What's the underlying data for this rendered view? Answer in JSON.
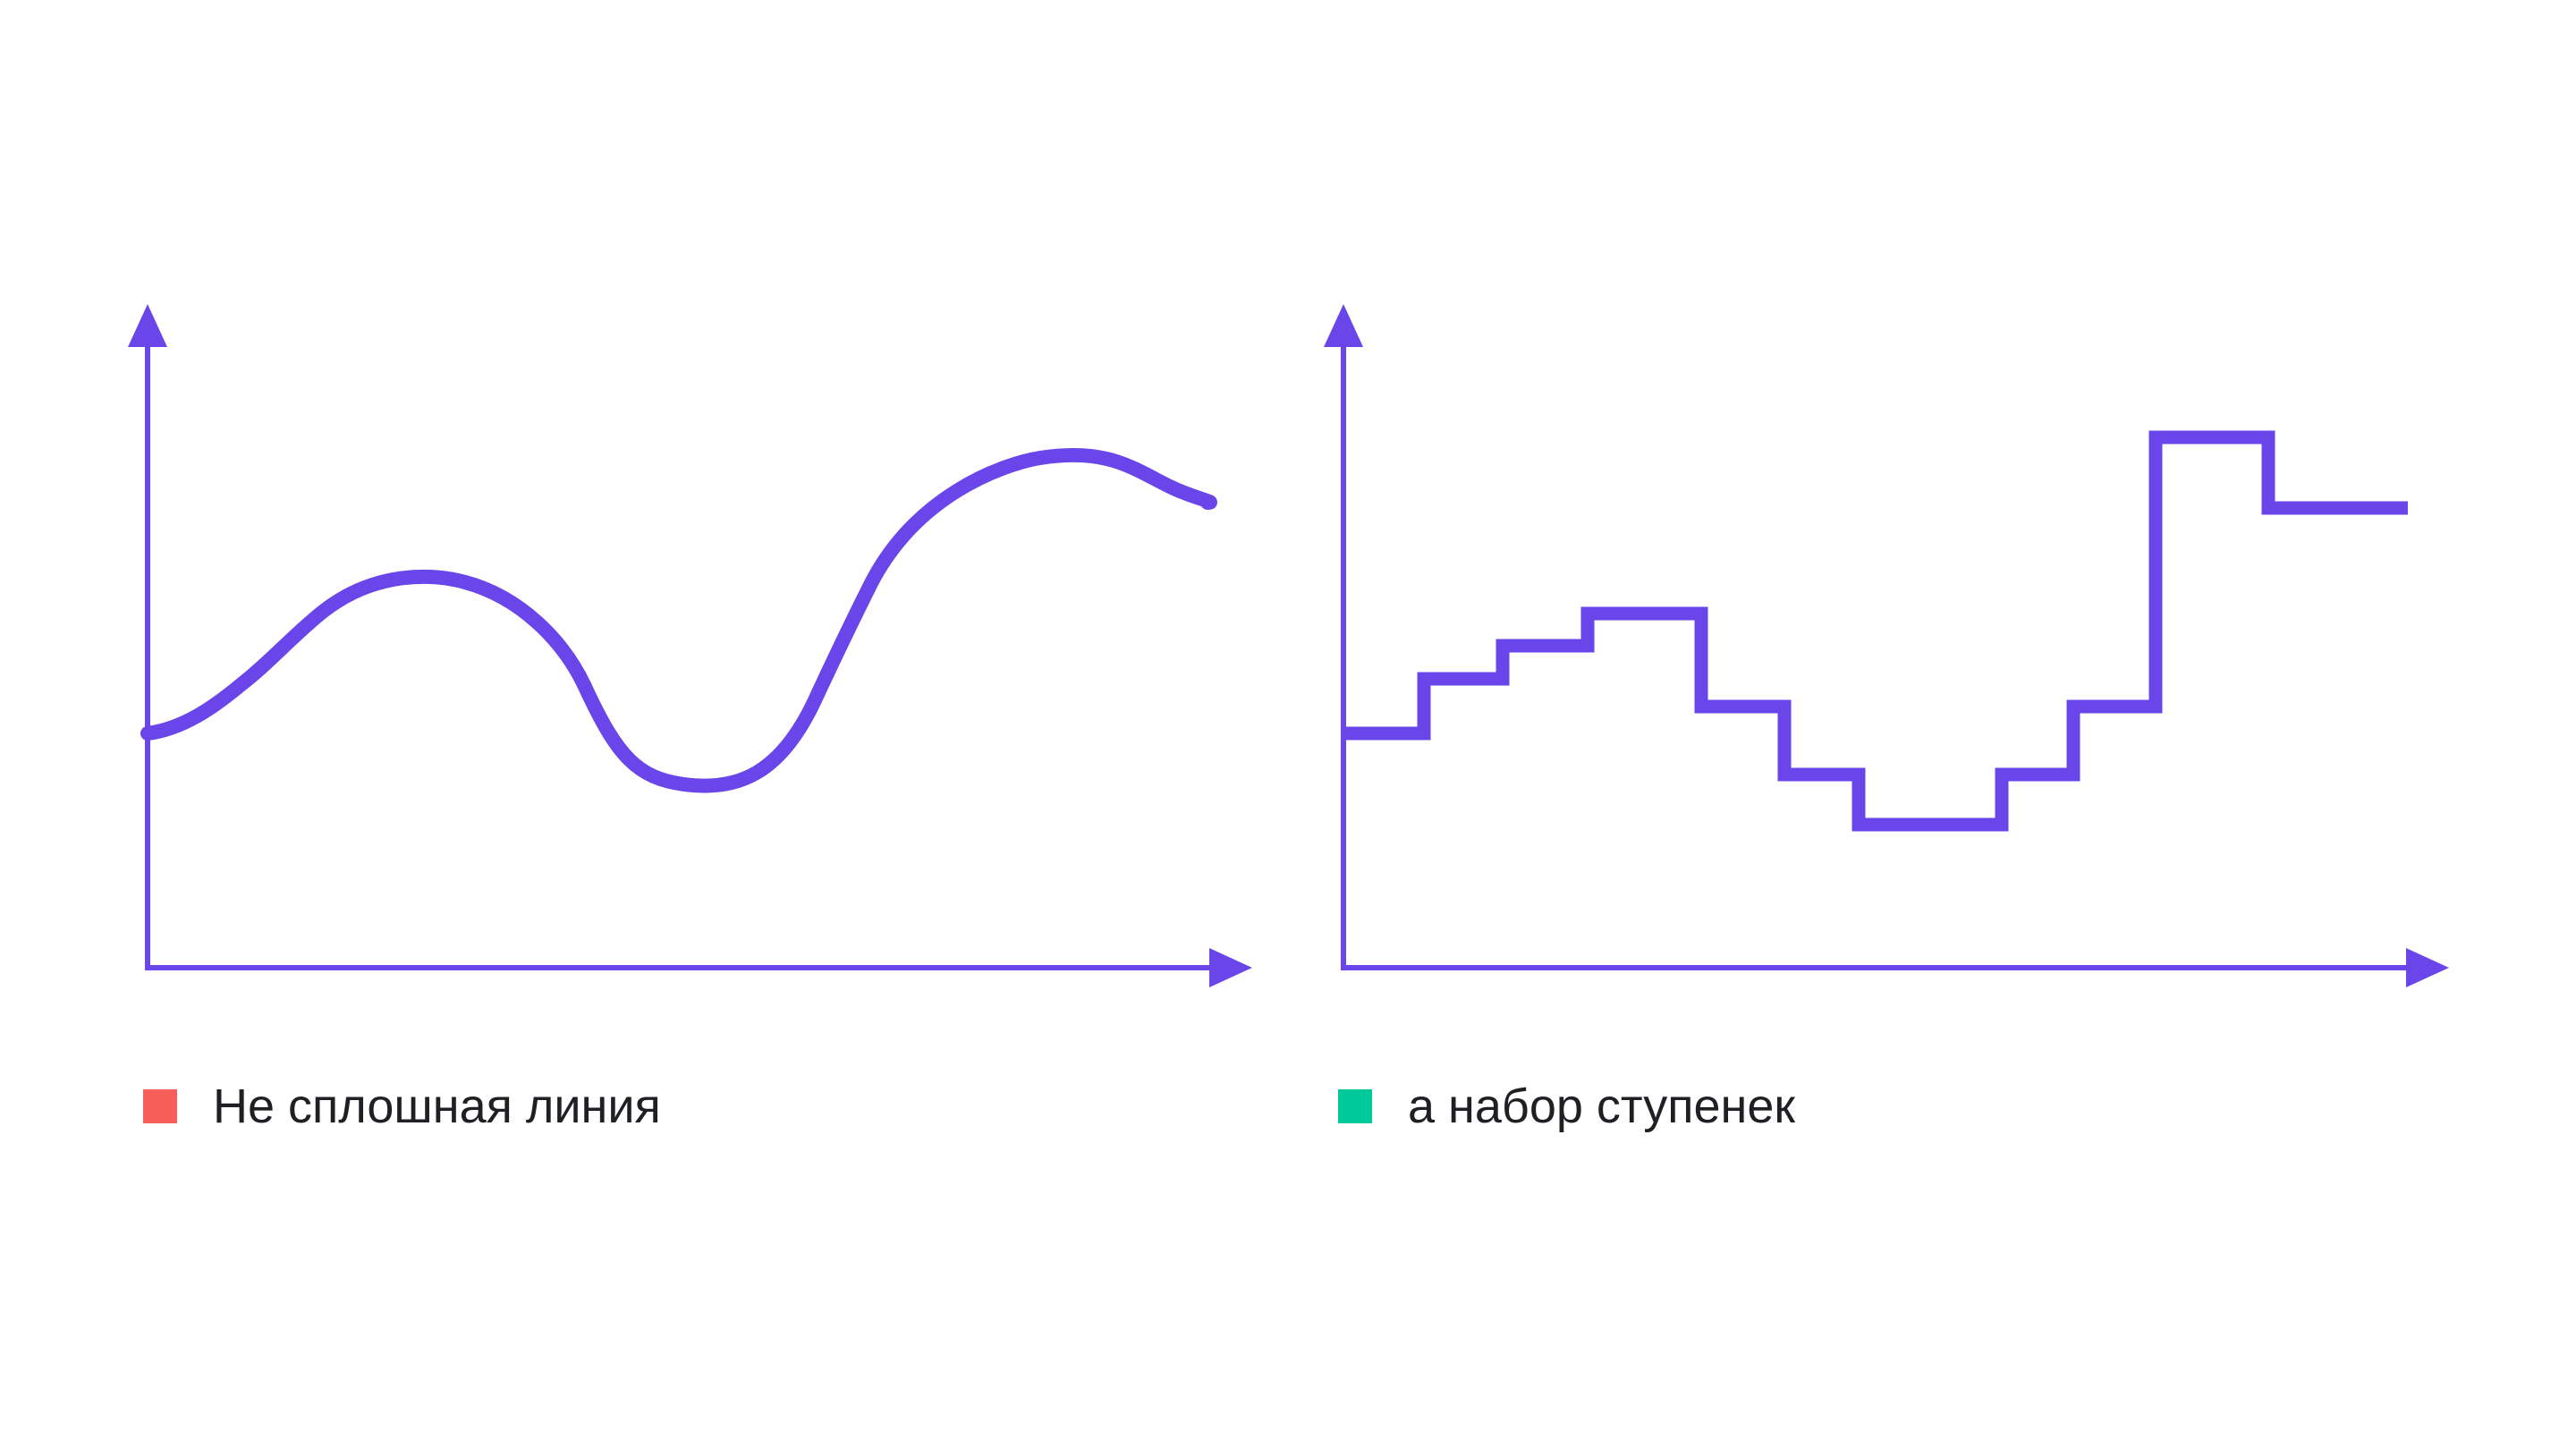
{
  "colors": {
    "background": "#ffffff",
    "primary": "#6a45ea",
    "legend_smooth": "#f75d59",
    "legend_steps": "#00c99a",
    "text": "#1f1f24"
  },
  "legend": {
    "smooth_label": "Не сплошная линия",
    "steps_label": "а набор ступенек"
  }
}
